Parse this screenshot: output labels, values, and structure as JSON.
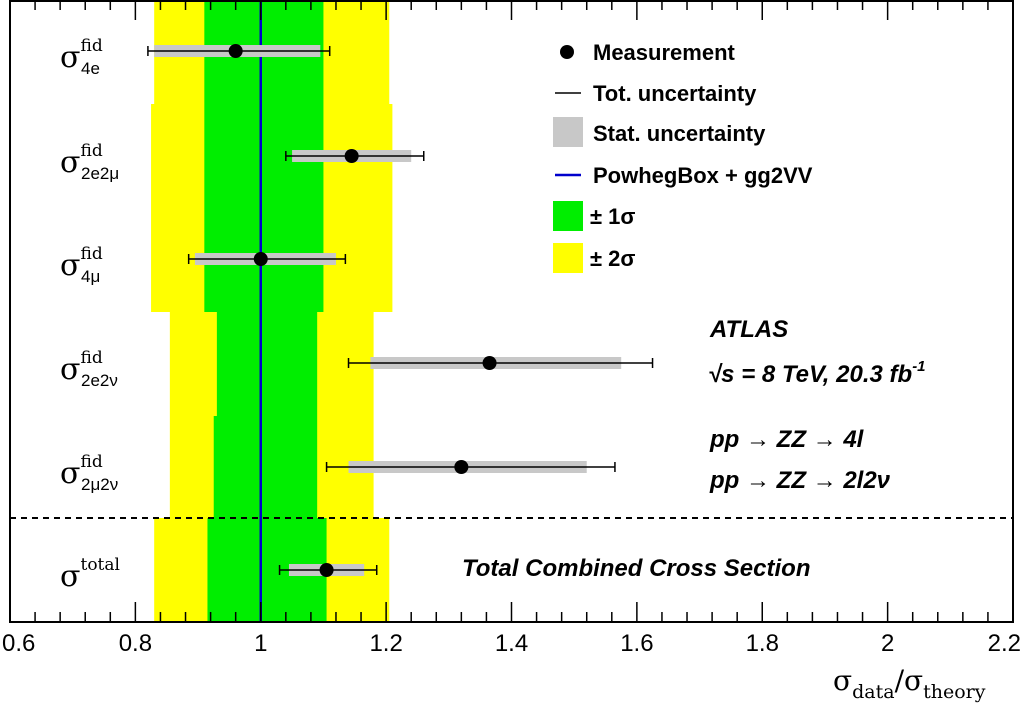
{
  "chart_data": {
    "type": "scatter",
    "xlim": [
      0.6,
      2.2
    ],
    "xticks": [
      "0.6",
      "0.8",
      "1",
      "1.2",
      "1.4",
      "1.6",
      "1.8",
      "2",
      "2.2"
    ],
    "xlabel": {
      "main": "σ",
      "sub1": "data",
      "sep": "/σ",
      "sub2": "theory"
    },
    "theory_value": 1.0,
    "rows": [
      {
        "symbol": "σ",
        "sup": "fid",
        "sub": "4e",
        "value": 0.96,
        "stat": [
          0.83,
          1.095
        ],
        "tot": [
          0.82,
          1.11
        ],
        "band1": [
          0.91,
          1.1
        ],
        "band2": [
          0.83,
          1.205
        ]
      },
      {
        "symbol": "σ",
        "sup": "fid",
        "sub": "2e2μ",
        "value": 1.145,
        "stat": [
          1.05,
          1.24
        ],
        "tot": [
          1.04,
          1.26
        ],
        "band1": [
          0.91,
          1.1
        ],
        "band2": [
          0.825,
          1.21
        ]
      },
      {
        "symbol": "σ",
        "sup": "fid",
        "sub": "4μ",
        "value": 1.0,
        "stat": [
          0.895,
          1.12
        ],
        "tot": [
          0.885,
          1.135
        ],
        "band1": [
          0.91,
          1.1
        ],
        "band2": [
          0.825,
          1.21
        ]
      },
      {
        "symbol": "σ",
        "sup": "fid",
        "sub": "2e2ν",
        "value": 1.365,
        "stat": [
          1.175,
          1.575
        ],
        "tot": [
          1.14,
          1.625
        ],
        "band1": [
          0.93,
          1.09
        ],
        "band2": [
          0.855,
          1.18
        ]
      },
      {
        "symbol": "σ",
        "sup": "fid",
        "sub": "2μ2ν",
        "value": 1.32,
        "stat": [
          1.14,
          1.52
        ],
        "tot": [
          1.105,
          1.565
        ],
        "band1": [
          0.925,
          1.09
        ],
        "band2": [
          0.855,
          1.18
        ]
      },
      {
        "symbol": "σ",
        "sup": "total",
        "sub": "",
        "value": 1.105,
        "stat": [
          1.045,
          1.165
        ],
        "tot": [
          1.03,
          1.185
        ],
        "band1": [
          0.915,
          1.105
        ],
        "band2": [
          0.83,
          1.205
        ]
      }
    ],
    "legend": {
      "measurement": "Measurement",
      "tot_unc": "Tot. uncertainty",
      "stat_unc": "Stat. uncertainty",
      "theory": "PowhegBox + gg2VV",
      "band1": "± 1σ",
      "band2": "± 2σ"
    },
    "annotations": {
      "experiment": "ATLAS",
      "energy": "√s = 8 TeV, 20.3 fb",
      "lumi_exp": "-1",
      "process1": "pp  → ZZ  → 4l",
      "process2": "pp  → ZZ  → 2l2ν",
      "total_label": "Total Combined Cross Section"
    },
    "colors": {
      "band1": "#00ee00",
      "band2": "#ffff00",
      "theory_line": "#0000cc",
      "stat": "#c8c8c8",
      "marker": "#000000"
    }
  }
}
